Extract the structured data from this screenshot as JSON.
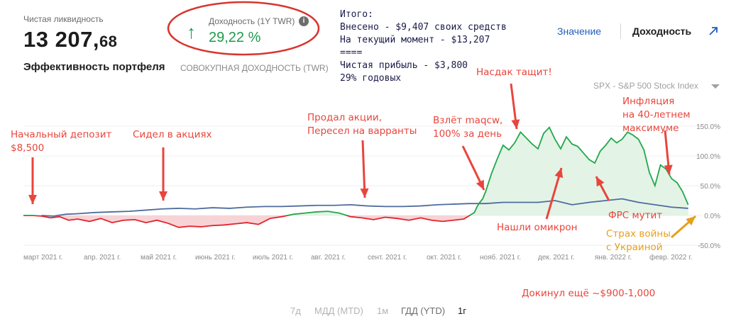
{
  "liquidity": {
    "label": "Чистая ликвидность",
    "value_int": "13 207,",
    "value_dec": "68"
  },
  "returns": {
    "label": "Доходность (1Y TWR)",
    "value": "29,22 %"
  },
  "portfolio": {
    "title": "Эффективность портфеля",
    "subtitle": "СОВОКУПНАЯ ДОХОДНОСТЬ (TWR)"
  },
  "summary": {
    "lines": [
      "Итого:",
      "Внесено - $9,407 своих средств",
      "На текущий момент - $13,207",
      "====",
      "Чистая прибыль - $3,800",
      "29% годовых"
    ]
  },
  "tabs": {
    "value": "Значение",
    "returns": "Доходность"
  },
  "benchmark": {
    "label": "SPX - S&P 500 Stock Index"
  },
  "ranges": [
    "7д",
    "МДД (MTD)",
    "1м",
    "ГДД (YTD)",
    "1г"
  ],
  "active_range": "1г",
  "annotations": {
    "initial_deposit": [
      "Начальный депозит",
      "$8,500"
    ],
    "sat_in_stocks": [
      "Сидел в акциях"
    ],
    "sold_stocks": [
      "Продал акции,",
      "Пересел на варранты"
    ],
    "maqcw": [
      "Взлёт maqcw,",
      "100% за день"
    ],
    "nasdaq": [
      "Насдак тащит!"
    ],
    "inflation": [
      "Инфляция",
      "на 40-летнем",
      "максимуме"
    ],
    "omicron": [
      "Нашли омикрон"
    ],
    "fed": [
      "ФРС мутит"
    ],
    "war": [
      "Страх войны",
      "с Украиной"
    ],
    "deposit_more": [
      "Докинул ещё ~$900-1,000"
    ]
  },
  "colors": {
    "portfolio_up": "#22a84a",
    "portfolio_down": "#e0242b",
    "benchmark": "#4f6b9e",
    "annotation": "#e8453c",
    "war_annotation": "#e8a019",
    "accent_blue": "#1f5fbf"
  },
  "chart_data": {
    "type": "line",
    "title": "",
    "x_ticks": [
      "март 2021 г.",
      "апр. 2021 г.",
      "май 2021 г.",
      "июнь 2021 г.",
      "июль 2021 г.",
      "авг. 2021 г.",
      "сент. 2021 г.",
      "окт. 2021 г.",
      "нояб. 2021 г.",
      "дек. 2021 г.",
      "янв. 2022 г.",
      "февр. 2022 г."
    ],
    "y_ticks": [
      "150.0%",
      "100.0%",
      "50.0%",
      "0.0%",
      "-50.0%"
    ],
    "y_tick_values": [
      150,
      100,
      50,
      0,
      -50
    ],
    "ylim": [
      -50,
      150
    ],
    "xlim": [
      0,
      12
    ],
    "series": [
      {
        "name": "",
        "x": [
          0,
          0.15,
          0.3,
          0.45,
          0.6,
          0.75,
          0.9,
          1.1,
          1.3,
          1.5,
          1.7,
          1.9,
          2.1,
          2.3,
          2.5,
          2.7,
          2.9,
          3.1,
          3.3,
          3.5,
          3.7,
          3.9,
          4.1,
          4.3,
          4.5,
          4.7,
          4.9,
          5.1,
          5.3,
          5.5,
          5.7,
          5.9,
          6.1,
          6.3,
          6.5,
          6.7,
          6.9,
          7.1,
          7.3,
          7.5,
          7.7,
          7.9,
          7.95,
          8.0,
          8.05,
          8.1,
          8.15,
          8.2,
          8.3,
          8.4,
          8.5,
          8.6,
          8.7,
          8.8,
          8.9,
          9.0,
          9.1,
          9.2,
          9.3,
          9.4,
          9.5,
          9.6,
          9.7,
          9.8,
          9.9,
          10.0,
          10.1,
          10.2,
          10.3,
          10.4,
          10.5,
          10.6,
          10.7,
          10.8,
          10.9,
          11.0,
          11.1,
          11.2,
          11.3,
          11.4,
          11.5,
          11.6,
          11.7
        ],
        "values": [
          0,
          0,
          -1,
          -4,
          -2,
          -8,
          -6,
          -10,
          -5,
          -12,
          -8,
          -7,
          -12,
          -8,
          -13,
          -20,
          -18,
          -19,
          -17,
          -16,
          -14,
          -12,
          -15,
          -5,
          -2,
          2,
          4,
          6,
          7,
          4,
          -2,
          -4,
          -7,
          -3,
          -5,
          -8,
          -4,
          -8,
          -10,
          -8,
          -6,
          5,
          15,
          22,
          28,
          40,
          55,
          70,
          95,
          118,
          110,
          122,
          140,
          130,
          120,
          112,
          138,
          148,
          128,
          112,
          132,
          120,
          116,
          105,
          94,
          88,
          108,
          118,
          130,
          122,
          128,
          140,
          135,
          128,
          110,
          72,
          50,
          85,
          78,
          62,
          55,
          40,
          18
        ]
      },
      {
        "name": "SPX - S&P 500 Stock Index",
        "x": [
          0.3,
          0.5,
          0.7,
          0.9,
          1.2,
          1.5,
          1.8,
          2.1,
          2.4,
          2.7,
          3.0,
          3.3,
          3.6,
          3.9,
          4.2,
          4.5,
          4.8,
          5.1,
          5.4,
          5.7,
          6.0,
          6.3,
          6.6,
          6.9,
          7.2,
          7.5,
          7.8,
          8.1,
          8.4,
          8.7,
          9.0,
          9.3,
          9.6,
          9.9,
          10.2,
          10.5,
          10.8,
          11.1,
          11.4,
          11.7
        ],
        "values": [
          0,
          -1,
          2,
          3,
          5,
          6,
          7,
          9,
          11,
          12,
          11,
          13,
          12,
          14,
          15,
          15,
          16,
          17,
          17,
          18,
          16,
          15,
          15,
          16,
          18,
          19,
          20,
          20,
          22,
          22,
          22,
          25,
          18,
          22,
          25,
          28,
          22,
          18,
          14,
          12
        ]
      }
    ],
    "grid": true,
    "y_axis_position": "right"
  }
}
